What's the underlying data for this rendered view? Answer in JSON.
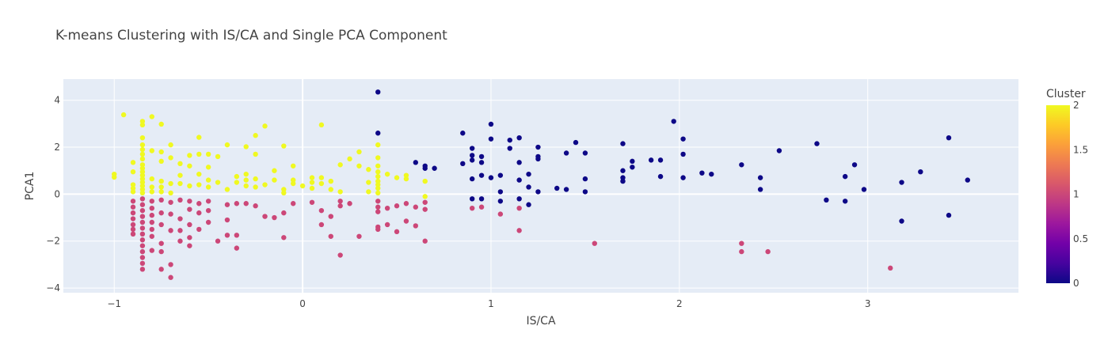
{
  "chart_data": {
    "type": "scatter",
    "title": "K-means Clustering with IS/CA and Single PCA Component",
    "xlabel": "IS/CA",
    "ylabel": "PCA1",
    "xlim": [
      -1.27,
      3.8
    ],
    "ylim": [
      -4.2,
      4.9
    ],
    "x_ticks": [
      -1,
      0,
      1,
      2,
      3
    ],
    "x_tick_labels": [
      "−1",
      "0",
      "1",
      "2",
      "3"
    ],
    "y_ticks": [
      -4,
      -2,
      0,
      2,
      4
    ],
    "y_tick_labels": [
      "−4",
      "−2",
      "0",
      "2",
      "4"
    ],
    "grid": true,
    "colorbar": {
      "title": "Cluster",
      "range": [
        0,
        2
      ],
      "ticks": [
        0,
        0.5,
        1,
        1.5,
        2
      ],
      "tick_labels": [
        "0",
        "0.5",
        "1",
        "1.5",
        "2"
      ],
      "colors": [
        "#0d0887",
        "#46039f",
        "#7201a8",
        "#9c179e",
        "#bd3786",
        "#d8576b",
        "#ed7953",
        "#fb9f3a",
        "#fdca26",
        "#f0f921"
      ]
    },
    "cluster_colors": {
      "0": "#0d0887",
      "1": "#cc4778",
      "2": "#f0f921"
    },
    "clusters": [
      {
        "cluster": 2,
        "points": [
          [
            -1.0,
            0.85
          ],
          [
            -1.0,
            0.72
          ],
          [
            -0.95,
            3.38
          ],
          [
            -0.9,
            1.35
          ],
          [
            -0.9,
            0.95
          ],
          [
            -0.9,
            0.4
          ],
          [
            -0.9,
            0.1
          ],
          [
            -0.9,
            0.25
          ],
          [
            -0.85,
            3.1
          ],
          [
            -0.85,
            2.95
          ],
          [
            -0.85,
            2.4
          ],
          [
            -0.85,
            2.1
          ],
          [
            -0.85,
            1.9
          ],
          [
            -0.85,
            1.7
          ],
          [
            -0.85,
            1.5
          ],
          [
            -0.85,
            1.25
          ],
          [
            -0.85,
            1.1
          ],
          [
            -0.85,
            0.95
          ],
          [
            -0.85,
            0.8
          ],
          [
            -0.85,
            0.65
          ],
          [
            -0.85,
            0.5
          ],
          [
            -0.85,
            0.35
          ],
          [
            -0.85,
            0.2
          ],
          [
            -0.85,
            0.05
          ],
          [
            -0.8,
            3.3
          ],
          [
            -0.8,
            1.85
          ],
          [
            -0.8,
            0.65
          ],
          [
            -0.8,
            0.3
          ],
          [
            -0.8,
            0.1
          ],
          [
            -0.75,
            2.98
          ],
          [
            -0.75,
            1.8
          ],
          [
            -0.75,
            1.4
          ],
          [
            -0.75,
            0.55
          ],
          [
            -0.75,
            0.3
          ],
          [
            -0.75,
            0.1
          ],
          [
            -0.7,
            2.1
          ],
          [
            -0.7,
            1.55
          ],
          [
            -0.7,
            0.45
          ],
          [
            -0.7,
            0.05
          ],
          [
            -0.65,
            1.3
          ],
          [
            -0.65,
            0.8
          ],
          [
            -0.65,
            0.45
          ],
          [
            -0.6,
            1.65
          ],
          [
            -0.6,
            1.2
          ],
          [
            -0.6,
            0.35
          ],
          [
            -0.55,
            2.42
          ],
          [
            -0.55,
            1.7
          ],
          [
            -0.55,
            0.85
          ],
          [
            -0.55,
            0.4
          ],
          [
            -0.5,
            1.7
          ],
          [
            -0.5,
            1.15
          ],
          [
            -0.5,
            0.6
          ],
          [
            -0.5,
            0.3
          ],
          [
            -0.45,
            1.6
          ],
          [
            -0.45,
            0.5
          ],
          [
            -0.4,
            2.1
          ],
          [
            -0.4,
            0.2
          ],
          [
            -0.35,
            0.75
          ],
          [
            -0.35,
            0.5
          ],
          [
            -0.3,
            2.02
          ],
          [
            -0.3,
            0.85
          ],
          [
            -0.3,
            0.6
          ],
          [
            -0.3,
            0.35
          ],
          [
            -0.25,
            2.5
          ],
          [
            -0.25,
            1.7
          ],
          [
            -0.25,
            0.65
          ],
          [
            -0.25,
            0.3
          ],
          [
            -0.2,
            2.9
          ],
          [
            -0.2,
            0.4
          ],
          [
            -0.15,
            1.0
          ],
          [
            -0.15,
            0.6
          ],
          [
            -0.1,
            2.05
          ],
          [
            -0.1,
            0.2
          ],
          [
            -0.1,
            0.05
          ],
          [
            -0.05,
            1.2
          ],
          [
            -0.05,
            0.6
          ],
          [
            -0.05,
            0.45
          ],
          [
            0.0,
            0.35
          ],
          [
            0.05,
            0.7
          ],
          [
            0.05,
            0.5
          ],
          [
            0.05,
            0.25
          ],
          [
            0.1,
            2.95
          ],
          [
            0.1,
            0.7
          ],
          [
            0.1,
            0.45
          ],
          [
            0.15,
            0.55
          ],
          [
            0.15,
            0.2
          ],
          [
            0.2,
            1.25
          ],
          [
            0.2,
            0.1
          ],
          [
            0.25,
            1.5
          ],
          [
            0.3,
            1.8
          ],
          [
            0.3,
            1.2
          ],
          [
            0.35,
            1.05
          ],
          [
            0.35,
            0.5
          ],
          [
            0.35,
            0.1
          ],
          [
            0.4,
            2.1
          ],
          [
            0.4,
            1.55
          ],
          [
            0.4,
            1.2
          ],
          [
            0.4,
            0.95
          ],
          [
            0.4,
            0.75
          ],
          [
            0.4,
            0.55
          ],
          [
            0.4,
            0.4
          ],
          [
            0.4,
            0.25
          ],
          [
            0.4,
            0.05
          ],
          [
            0.45,
            0.85
          ],
          [
            0.5,
            0.7
          ],
          [
            0.55,
            0.8
          ],
          [
            0.55,
            0.65
          ],
          [
            0.65,
            0.55
          ],
          [
            0.65,
            -0.1
          ]
        ]
      },
      {
        "cluster": 1,
        "points": [
          [
            -0.9,
            -0.3
          ],
          [
            -0.9,
            -0.55
          ],
          [
            -0.9,
            -0.8
          ],
          [
            -0.9,
            -1.05
          ],
          [
            -0.9,
            -1.3
          ],
          [
            -0.9,
            -1.5
          ],
          [
            -0.9,
            -1.7
          ],
          [
            -0.85,
            -0.2
          ],
          [
            -0.85,
            -0.45
          ],
          [
            -0.85,
            -0.7
          ],
          [
            -0.85,
            -0.95
          ],
          [
            -0.85,
            -1.2
          ],
          [
            -0.85,
            -1.45
          ],
          [
            -0.85,
            -1.7
          ],
          [
            -0.85,
            -1.95
          ],
          [
            -0.85,
            -2.2
          ],
          [
            -0.85,
            -2.45
          ],
          [
            -0.85,
            -2.7
          ],
          [
            -0.85,
            -2.95
          ],
          [
            -0.85,
            -3.2
          ],
          [
            -0.8,
            -0.3
          ],
          [
            -0.8,
            -0.6
          ],
          [
            -0.8,
            -0.9
          ],
          [
            -0.8,
            -1.2
          ],
          [
            -0.8,
            -1.5
          ],
          [
            -0.8,
            -1.8
          ],
          [
            -0.8,
            -2.4
          ],
          [
            -0.75,
            -0.25
          ],
          [
            -0.75,
            -0.8
          ],
          [
            -0.75,
            -1.3
          ],
          [
            -0.75,
            -2.1
          ],
          [
            -0.75,
            -2.45
          ],
          [
            -0.75,
            -3.2
          ],
          [
            -0.7,
            -0.35
          ],
          [
            -0.7,
            -0.85
          ],
          [
            -0.7,
            -1.55
          ],
          [
            -0.7,
            -3.0
          ],
          [
            -0.7,
            -3.55
          ],
          [
            -0.65,
            -0.25
          ],
          [
            -0.65,
            -1.05
          ],
          [
            -0.65,
            -1.55
          ],
          [
            -0.65,
            -2.0
          ],
          [
            -0.6,
            -0.3
          ],
          [
            -0.6,
            -0.65
          ],
          [
            -0.6,
            -1.3
          ],
          [
            -0.6,
            -1.85
          ],
          [
            -0.6,
            -2.2
          ],
          [
            -0.55,
            -0.4
          ],
          [
            -0.55,
            -0.8
          ],
          [
            -0.55,
            -1.5
          ],
          [
            -0.5,
            -0.3
          ],
          [
            -0.5,
            -0.7
          ],
          [
            -0.5,
            -1.2
          ],
          [
            -0.45,
            -2.0
          ],
          [
            -0.4,
            -0.45
          ],
          [
            -0.4,
            -1.1
          ],
          [
            -0.4,
            -1.75
          ],
          [
            -0.35,
            -0.4
          ],
          [
            -0.35,
            -1.75
          ],
          [
            -0.35,
            -2.3
          ],
          [
            -0.3,
            -0.4
          ],
          [
            -0.25,
            -0.5
          ],
          [
            -0.2,
            -0.95
          ],
          [
            -0.15,
            -1.0
          ],
          [
            -0.1,
            -0.8
          ],
          [
            -0.1,
            -1.85
          ],
          [
            -0.05,
            -0.4
          ],
          [
            0.05,
            -0.35
          ],
          [
            0.1,
            -0.7
          ],
          [
            0.1,
            -1.3
          ],
          [
            0.15,
            -0.95
          ],
          [
            0.15,
            -1.8
          ],
          [
            0.2,
            -0.3
          ],
          [
            0.2,
            -0.5
          ],
          [
            0.2,
            -2.6
          ],
          [
            0.25,
            -0.4
          ],
          [
            0.3,
            -1.8
          ],
          [
            0.4,
            -0.3
          ],
          [
            0.4,
            -0.55
          ],
          [
            0.4,
            -0.75
          ],
          [
            0.4,
            -1.4
          ],
          [
            0.4,
            -1.5
          ],
          [
            0.45,
            -0.6
          ],
          [
            0.45,
            -1.3
          ],
          [
            0.5,
            -0.5
          ],
          [
            0.5,
            -1.6
          ],
          [
            0.55,
            -0.4
          ],
          [
            0.55,
            -1.15
          ],
          [
            0.6,
            -0.55
          ],
          [
            0.6,
            -1.35
          ],
          [
            0.65,
            -0.35
          ],
          [
            0.65,
            -0.65
          ],
          [
            0.65,
            -2.0
          ],
          [
            0.9,
            -0.6
          ],
          [
            0.95,
            -0.55
          ],
          [
            1.05,
            -0.85
          ],
          [
            1.15,
            -0.6
          ],
          [
            1.15,
            -1.55
          ],
          [
            1.55,
            -2.1
          ],
          [
            2.33,
            -2.1
          ],
          [
            2.33,
            -2.45
          ],
          [
            2.47,
            -2.45
          ],
          [
            3.12,
            -3.15
          ]
        ]
      },
      {
        "cluster": 0,
        "points": [
          [
            0.4,
            4.35
          ],
          [
            0.4,
            2.6
          ],
          [
            0.6,
            1.35
          ],
          [
            0.65,
            1.2
          ],
          [
            0.65,
            1.1
          ],
          [
            0.7,
            1.1
          ],
          [
            0.85,
            2.6
          ],
          [
            0.85,
            1.3
          ],
          [
            0.9,
            1.95
          ],
          [
            0.9,
            1.65
          ],
          [
            0.9,
            1.45
          ],
          [
            0.9,
            0.65
          ],
          [
            0.9,
            -0.2
          ],
          [
            0.95,
            1.6
          ],
          [
            0.95,
            1.35
          ],
          [
            0.95,
            0.8
          ],
          [
            0.95,
            -0.2
          ],
          [
            1.0,
            2.98
          ],
          [
            1.0,
            2.35
          ],
          [
            1.0,
            0.7
          ],
          [
            1.05,
            0.8
          ],
          [
            1.05,
            0.1
          ],
          [
            1.05,
            -0.3
          ],
          [
            1.1,
            2.3
          ],
          [
            1.1,
            1.95
          ],
          [
            1.15,
            2.4
          ],
          [
            1.15,
            1.35
          ],
          [
            1.15,
            0.6
          ],
          [
            1.15,
            -0.2
          ],
          [
            1.2,
            0.85
          ],
          [
            1.2,
            0.3
          ],
          [
            1.2,
            -0.45
          ],
          [
            1.25,
            2.0
          ],
          [
            1.25,
            1.6
          ],
          [
            1.25,
            1.5
          ],
          [
            1.25,
            0.1
          ],
          [
            1.35,
            0.25
          ],
          [
            1.4,
            1.75
          ],
          [
            1.4,
            0.2
          ],
          [
            1.45,
            2.2
          ],
          [
            1.5,
            1.75
          ],
          [
            1.5,
            0.65
          ],
          [
            1.5,
            0.1
          ],
          [
            1.7,
            2.15
          ],
          [
            1.7,
            1.0
          ],
          [
            1.7,
            0.7
          ],
          [
            1.7,
            0.55
          ],
          [
            1.75,
            1.4
          ],
          [
            1.75,
            1.15
          ],
          [
            1.85,
            1.45
          ],
          [
            1.9,
            1.45
          ],
          [
            1.9,
            0.75
          ],
          [
            1.97,
            3.1
          ],
          [
            2.02,
            2.35
          ],
          [
            2.02,
            1.7
          ],
          [
            2.02,
            0.7
          ],
          [
            2.12,
            0.9
          ],
          [
            2.17,
            0.85
          ],
          [
            2.33,
            1.25
          ],
          [
            2.43,
            0.7
          ],
          [
            2.43,
            0.2
          ],
          [
            2.53,
            1.85
          ],
          [
            2.73,
            2.15
          ],
          [
            2.78,
            -0.25
          ],
          [
            2.88,
            0.75
          ],
          [
            2.88,
            -0.3
          ],
          [
            2.93,
            1.25
          ],
          [
            2.98,
            0.2
          ],
          [
            3.18,
            0.5
          ],
          [
            3.18,
            -1.15
          ],
          [
            3.28,
            0.95
          ],
          [
            3.43,
            2.4
          ],
          [
            3.43,
            -0.9
          ],
          [
            3.53,
            0.6
          ]
        ]
      }
    ]
  }
}
